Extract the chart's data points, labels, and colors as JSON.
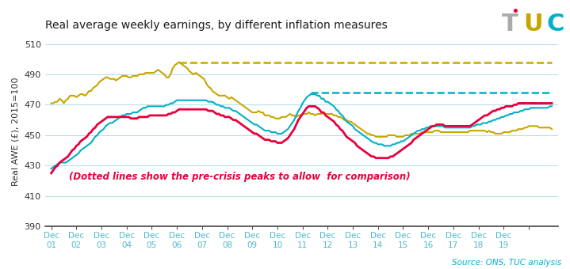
{
  "title": "Real average weekly earnings, by different inflation measures",
  "ylabel": "Real AWE (£), 2015=100",
  "source": "Source: ONS, TUC analysis",
  "annotation": "(Dotted lines show the pre-crisis peaks to allow  for comparison)",
  "annotation_color": "#e8003d",
  "xlabels_top": [
    "Dec",
    "Dec",
    "Dec",
    "Dec",
    "Dec",
    "Dec",
    "Dec",
    "Dec",
    "Dec",
    "Dec",
    "Dec",
    "Dec",
    "Dec",
    "Dec",
    "Dec",
    "Dec",
    "Dec",
    "Dec",
    "Dec"
  ],
  "xlabels_bot": [
    "01",
    "02",
    "03",
    "04",
    "05",
    "06",
    "07",
    "08",
    "09",
    "10",
    "11",
    "12",
    "13",
    "14",
    "15",
    "16",
    "17",
    "18",
    "19"
  ],
  "ylim": [
    390,
    515
  ],
  "yticks": [
    390,
    410,
    430,
    450,
    470,
    490,
    510
  ],
  "colors": {
    "gold": "#c8a600",
    "teal": "#00b0c8",
    "pink": "#e8003d",
    "bg": "#ffffff",
    "grid": "#b0dce8",
    "tick_label": "#4db8cc"
  },
  "peak_gold": 498.0,
  "peak_teal": 478.0,
  "peak_pink": 471.5,
  "gold": [
    471,
    471,
    472,
    472,
    474,
    473,
    471,
    473,
    474,
    476,
    476,
    476,
    475,
    476,
    477,
    477,
    476,
    477,
    479,
    479,
    481,
    482,
    483,
    485,
    486,
    487,
    488,
    488,
    487,
    487,
    487,
    486,
    487,
    488,
    489,
    489,
    489,
    488,
    488,
    489,
    489,
    489,
    490,
    490,
    490,
    491,
    491,
    491,
    491,
    491,
    492,
    493,
    492,
    491,
    490,
    488,
    488,
    490,
    494,
    496,
    497,
    498,
    497,
    496,
    495,
    494,
    492,
    491,
    490,
    491,
    490,
    489,
    488,
    487,
    484,
    482,
    481,
    479,
    478,
    477,
    476,
    476,
    476,
    476,
    475,
    474,
    475,
    474,
    473,
    472,
    471,
    470,
    469,
    468,
    467,
    466,
    465,
    465,
    465,
    466,
    465,
    465,
    463,
    463,
    463,
    462,
    462,
    461,
    461,
    461,
    462,
    462,
    462,
    463,
    464,
    463,
    463,
    462,
    463,
    463,
    464,
    464,
    464,
    465,
    464,
    464,
    463,
    464,
    464,
    464,
    465,
    464,
    464,
    464,
    464,
    463,
    463,
    462,
    462,
    461,
    460,
    460,
    459,
    459,
    458,
    457,
    456,
    455,
    454,
    453,
    452,
    451,
    451,
    450,
    450,
    449,
    449,
    449,
    449,
    449,
    449,
    450,
    450,
    450,
    450,
    449,
    449,
    449,
    449,
    450,
    450,
    450,
    451,
    451,
    451,
    451,
    451,
    452,
    452,
    452,
    452,
    452,
    452,
    453,
    453,
    453,
    452,
    452,
    452,
    452,
    452,
    452,
    452,
    452,
    452,
    452,
    452,
    452,
    452,
    452,
    453,
    453,
    453,
    453,
    453,
    453,
    453,
    453,
    452,
    453,
    452,
    452,
    451,
    451,
    451,
    451,
    452,
    452,
    452,
    452,
    453,
    453,
    453,
    454,
    454,
    454,
    455,
    455,
    456,
    456,
    456,
    456,
    456,
    455,
    455,
    455,
    455,
    455,
    455,
    454
  ],
  "teal": [
    428,
    429,
    430,
    431,
    432,
    432,
    432,
    432,
    433,
    434,
    435,
    436,
    437,
    438,
    440,
    441,
    442,
    443,
    444,
    445,
    447,
    449,
    450,
    452,
    453,
    454,
    456,
    457,
    458,
    458,
    459,
    460,
    461,
    462,
    463,
    463,
    464,
    464,
    464,
    465,
    465,
    465,
    466,
    467,
    468,
    468,
    469,
    469,
    469,
    469,
    469,
    469,
    469,
    469,
    469,
    470,
    470,
    471,
    471,
    472,
    473,
    473,
    473,
    473,
    473,
    473,
    473,
    473,
    473,
    473,
    473,
    473,
    473,
    473,
    473,
    472,
    472,
    472,
    471,
    470,
    470,
    469,
    469,
    468,
    468,
    468,
    467,
    466,
    466,
    465,
    464,
    463,
    462,
    461,
    460,
    459,
    458,
    457,
    457,
    456,
    455,
    454,
    453,
    453,
    453,
    452,
    452,
    452,
    451,
    451,
    451,
    452,
    453,
    454,
    456,
    458,
    460,
    463,
    466,
    468,
    471,
    473,
    475,
    476,
    477,
    477,
    477,
    476,
    476,
    474,
    474,
    472,
    472,
    471,
    470,
    469,
    467,
    466,
    464,
    463,
    461,
    459,
    458,
    457,
    456,
    454,
    453,
    452,
    451,
    450,
    449,
    448,
    447,
    446,
    445,
    445,
    444,
    444,
    444,
    443,
    443,
    443,
    443,
    444,
    444,
    445,
    445,
    446,
    446,
    447,
    448,
    449,
    450,
    451,
    452,
    453,
    453,
    454,
    454,
    455,
    455,
    456,
    456,
    456,
    456,
    456,
    456,
    456,
    455,
    455,
    455,
    455,
    455,
    455,
    455,
    455,
    455,
    455,
    455,
    455,
    455,
    456,
    456,
    457,
    457,
    457,
    458,
    458,
    458,
    459,
    459,
    460,
    460,
    461,
    461,
    462,
    462,
    463,
    463,
    464,
    464,
    465,
    465,
    465,
    466,
    466,
    467,
    467,
    467,
    468,
    468,
    468,
    468,
    468,
    468,
    468,
    468,
    468,
    469,
    469
  ],
  "pink": [
    425,
    427,
    429,
    430,
    432,
    433,
    434,
    435,
    436,
    438,
    440,
    441,
    443,
    444,
    446,
    447,
    448,
    449,
    451,
    452,
    454,
    455,
    457,
    458,
    459,
    460,
    461,
    462,
    462,
    462,
    462,
    462,
    462,
    462,
    462,
    462,
    462,
    462,
    461,
    461,
    461,
    461,
    462,
    462,
    462,
    462,
    462,
    463,
    463,
    463,
    463,
    463,
    463,
    463,
    463,
    463,
    464,
    464,
    465,
    465,
    466,
    467,
    467,
    467,
    467,
    467,
    467,
    467,
    467,
    467,
    467,
    467,
    467,
    467,
    467,
    466,
    466,
    466,
    465,
    464,
    464,
    463,
    463,
    462,
    462,
    462,
    461,
    460,
    460,
    459,
    458,
    457,
    456,
    455,
    454,
    453,
    452,
    451,
    451,
    450,
    449,
    448,
    447,
    447,
    447,
    446,
    446,
    446,
    445,
    445,
    445,
    446,
    447,
    448,
    450,
    452,
    454,
    457,
    460,
    462,
    464,
    466,
    468,
    469,
    469,
    469,
    469,
    468,
    467,
    465,
    465,
    463,
    462,
    461,
    460,
    459,
    457,
    456,
    454,
    453,
    451,
    449,
    448,
    447,
    446,
    445,
    443,
    442,
    441,
    440,
    439,
    438,
    437,
    436,
    436,
    435,
    435,
    435,
    435,
    435,
    435,
    435,
    436,
    436,
    437,
    438,
    439,
    440,
    441,
    442,
    443,
    444,
    445,
    447,
    448,
    449,
    450,
    451,
    452,
    453,
    454,
    455,
    456,
    456,
    457,
    457,
    457,
    457,
    456,
    456,
    456,
    456,
    456,
    456,
    456,
    456,
    456,
    456,
    456,
    456,
    456,
    457,
    458,
    459,
    460,
    461,
    462,
    463,
    463,
    464,
    465,
    466,
    466,
    467,
    467,
    468,
    468,
    469,
    469,
    469,
    469,
    470,
    470,
    471,
    471,
    471,
    471,
    471,
    471,
    471,
    471,
    471,
    471,
    471,
    471,
    471,
    471,
    471,
    471,
    471
  ]
}
